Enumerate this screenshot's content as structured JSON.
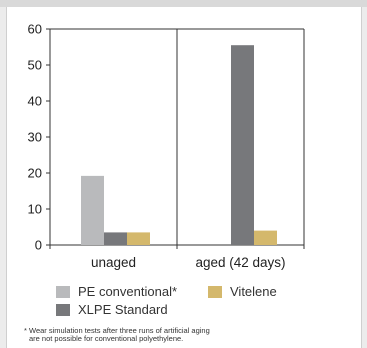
{
  "chart_data": {
    "type": "bar",
    "categories": [
      "unaged",
      "aged (42 days)"
    ],
    "series": [
      {
        "name": "PE conventional*",
        "color": "#b9babc",
        "values": [
          19.2,
          null
        ]
      },
      {
        "name": "XLPE Standard",
        "color": "#77787b",
        "values": [
          3.5,
          55.5
        ]
      },
      {
        "name": "Vitelene",
        "color": "#d4b86c",
        "values": [
          3.5,
          4.0
        ]
      }
    ],
    "yticks": [
      "0",
      "10",
      "20",
      "30",
      "40",
      "50",
      "60"
    ],
    "ylim": [
      0,
      60
    ],
    "title": "",
    "xlabel": "",
    "ylabel": "",
    "grid": false,
    "legend_position": "bottom"
  },
  "footnote": {
    "line1": "* Wear simulation tests after three runs of artificial aging",
    "line2": "are not possible for conventional polyethylene."
  }
}
